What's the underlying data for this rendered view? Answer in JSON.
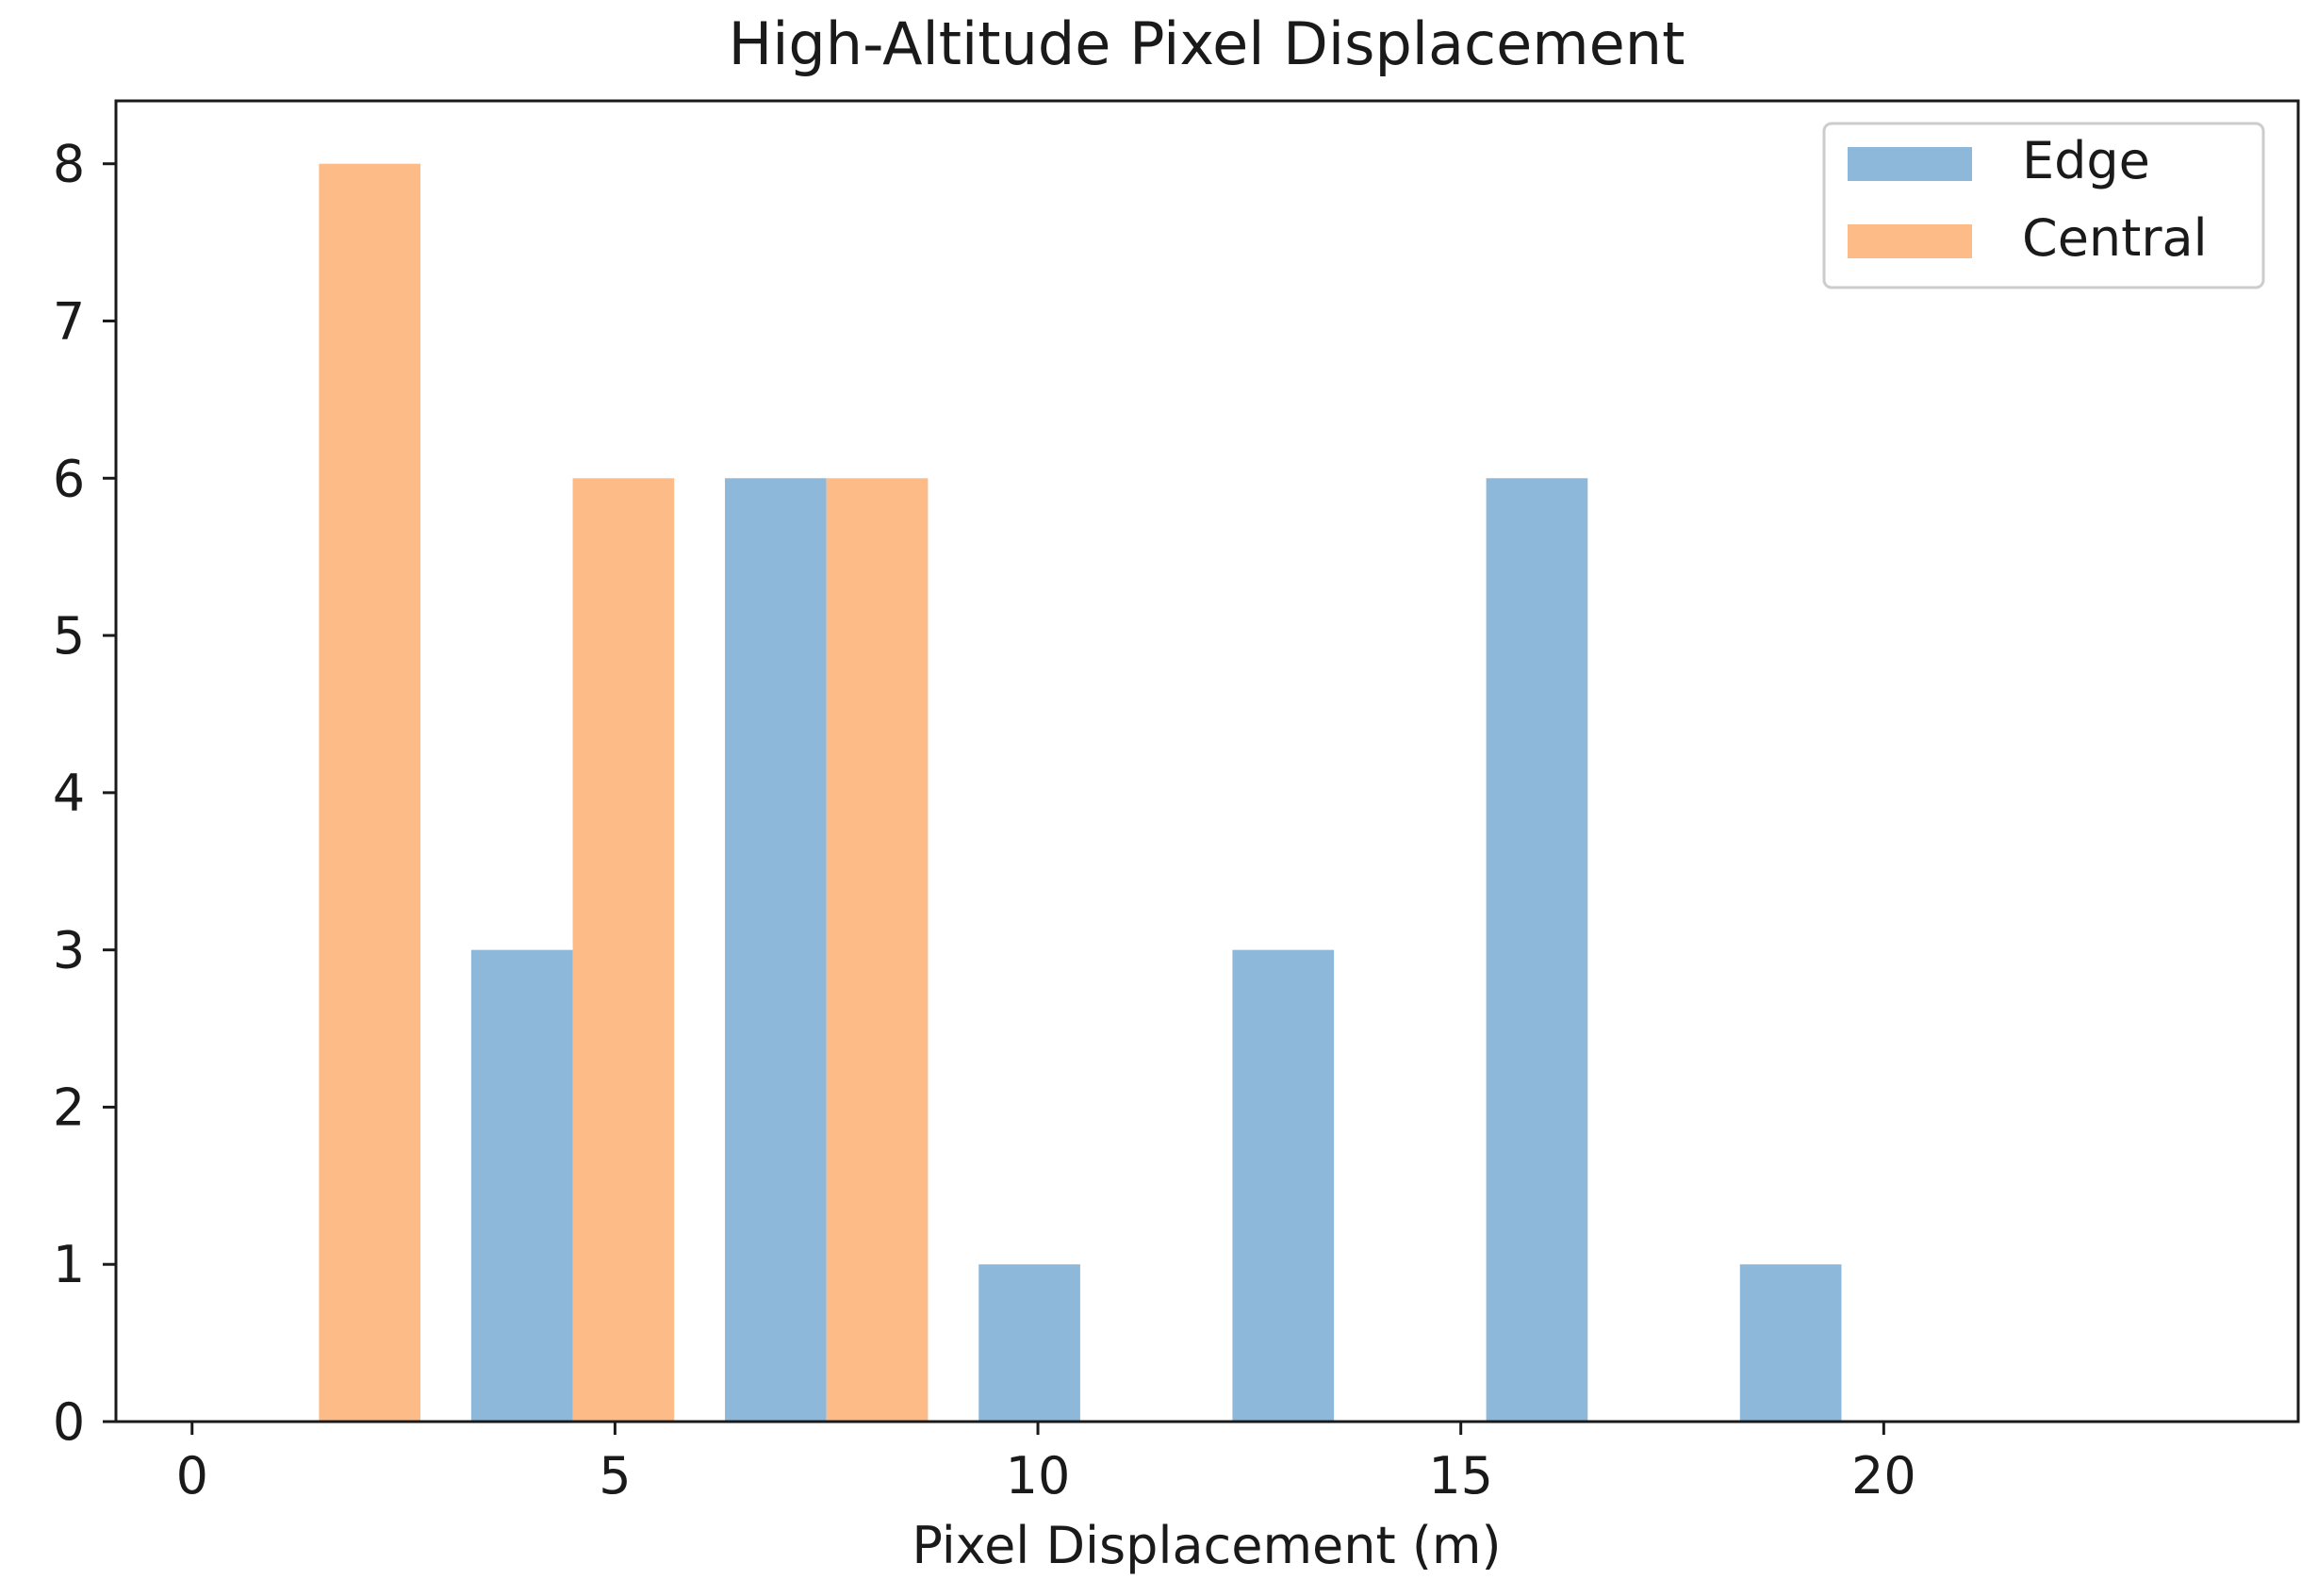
{
  "chart_data": {
    "type": "bar",
    "title": "High-Altitude Pixel Displacement",
    "xlabel": "Pixel Displacement (m)",
    "ylabel": "",
    "xlim": [
      -0.9,
      24.9
    ],
    "ylim": [
      0,
      8.4
    ],
    "xticks": [
      0,
      5,
      10,
      15,
      20
    ],
    "yticks": [
      0,
      1,
      2,
      3,
      4,
      5,
      6,
      7,
      8
    ],
    "grid": false,
    "legend_position": "top-right",
    "bar_width": 1.2,
    "series": [
      {
        "name": "Edge",
        "color": "#8eb8d9",
        "bars": [
          {
            "x": 3.9,
            "value": 3
          },
          {
            "x": 6.9,
            "value": 6
          },
          {
            "x": 9.9,
            "value": 1
          },
          {
            "x": 12.9,
            "value": 3
          },
          {
            "x": 15.9,
            "value": 6
          },
          {
            "x": 18.9,
            "value": 1
          }
        ]
      },
      {
        "name": "Central",
        "color": "#fdbc87",
        "bars": [
          {
            "x": 2.1,
            "value": 8
          },
          {
            "x": 5.1,
            "value": 6
          },
          {
            "x": 8.1,
            "value": 6
          }
        ]
      }
    ]
  }
}
